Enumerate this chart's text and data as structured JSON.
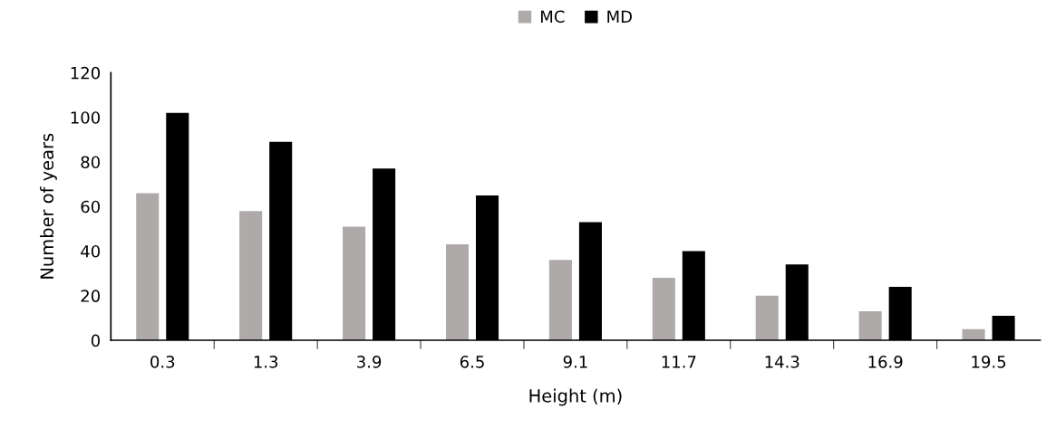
{
  "chart_data": {
    "type": "bar",
    "xlabel": "Height (m)",
    "ylabel": "Number of years",
    "categories": [
      "0.3",
      "1.3",
      "3.9",
      "6.5",
      "9.1",
      "11.7",
      "14.3",
      "16.9",
      "19.5"
    ],
    "series": [
      {
        "name": "MC",
        "color": "#aeaaaa",
        "values": [
          66,
          58,
          51,
          43,
          36,
          28,
          20,
          13,
          5
        ]
      },
      {
        "name": "MD",
        "color": "#000000",
        "values": [
          102,
          89,
          77,
          65,
          53,
          40,
          34,
          24,
          11
        ]
      }
    ],
    "ylim": [
      0,
      120
    ],
    "yticks": [
      0,
      20,
      40,
      60,
      80,
      100,
      120
    ],
    "grid": false,
    "legend": "top"
  }
}
